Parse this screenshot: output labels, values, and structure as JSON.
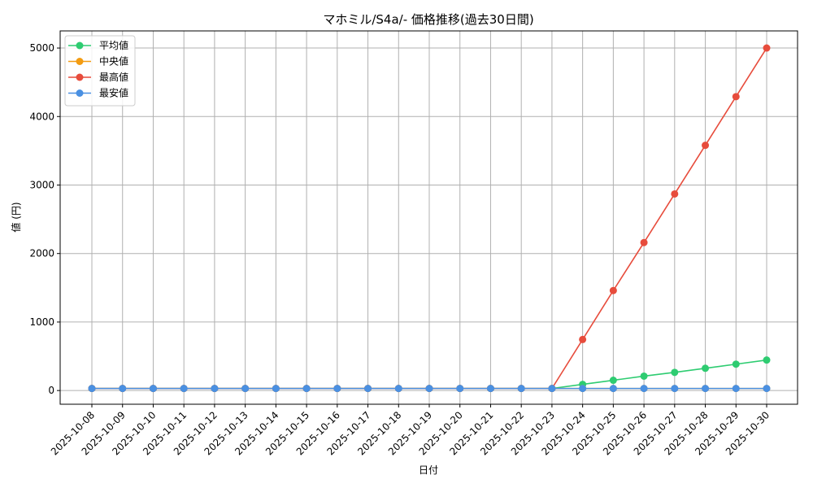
{
  "chart_data": {
    "type": "line",
    "title": "マホミル/S4a/- 価格推移(過去30日間)",
    "xlabel": "日付",
    "ylabel": "値 (円)",
    "categories": [
      "2025-10-08",
      "2025-10-09",
      "2025-10-10",
      "2025-10-11",
      "2025-10-12",
      "2025-10-13",
      "2025-10-14",
      "2025-10-15",
      "2025-10-16",
      "2025-10-17",
      "2025-10-18",
      "2025-10-19",
      "2025-10-20",
      "2025-10-21",
      "2025-10-22",
      "2025-10-23",
      "2025-10-24",
      "2025-10-25",
      "2025-10-26",
      "2025-10-27",
      "2025-10-28",
      "2025-10-29",
      "2025-10-30"
    ],
    "ylim": [
      -200,
      5250
    ],
    "yticks": [
      0,
      1000,
      2000,
      3000,
      4000,
      5000
    ],
    "grid": true,
    "legend_position": "top-left",
    "series": [
      {
        "name": "平均値",
        "color": "#2ecc71",
        "values": [
          30,
          30,
          30,
          30,
          30,
          30,
          30,
          30,
          30,
          30,
          30,
          30,
          30,
          30,
          30,
          30,
          90,
          150,
          210,
          265,
          325,
          385,
          445
        ]
      },
      {
        "name": "中央値",
        "color": "#f39c12",
        "values": [
          30,
          30,
          30,
          30,
          30,
          30,
          30,
          30,
          30,
          30,
          30,
          30,
          30,
          30,
          30,
          30,
          30,
          30,
          30,
          30,
          30,
          30,
          30
        ]
      },
      {
        "name": "最高値",
        "color": "#e74c3c",
        "values": [
          30,
          30,
          30,
          30,
          30,
          30,
          30,
          30,
          30,
          30,
          30,
          30,
          30,
          30,
          30,
          30,
          745,
          1460,
          2160,
          2870,
          3580,
          4290,
          5000
        ]
      },
      {
        "name": "最安値",
        "color": "#4a90e2",
        "values": [
          30,
          30,
          30,
          30,
          30,
          30,
          30,
          30,
          30,
          30,
          30,
          30,
          30,
          30,
          30,
          30,
          30,
          30,
          30,
          30,
          30,
          30,
          30
        ]
      }
    ]
  }
}
